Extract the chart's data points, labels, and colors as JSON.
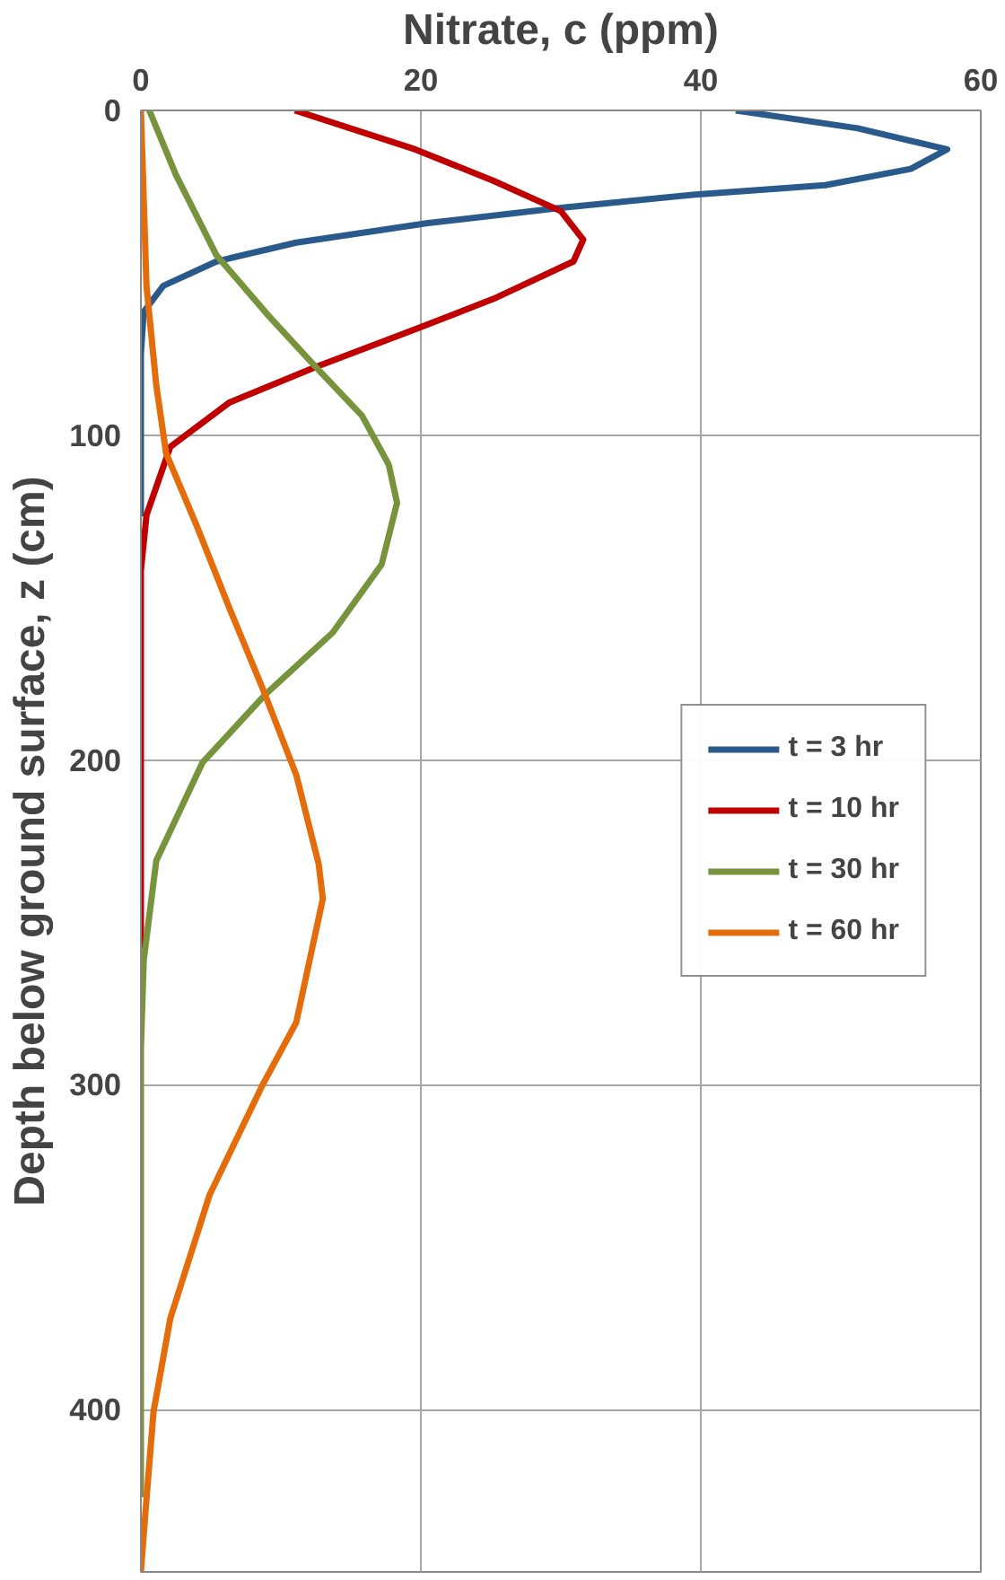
{
  "chart_data": {
    "type": "line",
    "xlabel": "Nitrate, c (ppm)",
    "ylabel": "Depth below ground surface, z (cm)",
    "xlim": [
      0,
      60
    ],
    "xticks": [
      0,
      20,
      40,
      60
    ],
    "ylim": [
      450,
      0
    ],
    "yticks": [
      0,
      100,
      200,
      300,
      400
    ],
    "grid": true,
    "legend": "right",
    "marker": "none",
    "line_style": "solid",
    "series": [
      {
        "name": "t = 3 hr",
        "color": "#2a5a8c",
        "x": [
          42.5,
          51.2,
          57.6,
          55,
          48.9,
          39.4,
          30,
          20.5,
          11.1,
          5.4,
          1.6,
          0.2,
          0,
          0
        ],
        "values": [
          0,
          5.5,
          12,
          18,
          23,
          26,
          30,
          34.7,
          40.7,
          46.5,
          54,
          62,
          75,
          125
        ]
      },
      {
        "name": "t = 10 hr",
        "color": "#c00000",
        "x": [
          11,
          19.6,
          25.2,
          30,
          31.6,
          30.9,
          25.2,
          19.6,
          12.5,
          6.3,
          2.1,
          0.4,
          0,
          0
        ],
        "values": [
          0,
          12,
          21.7,
          31,
          39.8,
          46.5,
          58,
          67.4,
          79,
          90,
          103.6,
          124.6,
          141.7,
          258
        ]
      },
      {
        "name": "t = 30 hr",
        "color": "#77933c",
        "x": [
          0.6,
          2.5,
          5.4,
          9.2,
          12.5,
          15.8,
          17.7,
          18.3,
          17.2,
          13.7,
          8.9,
          4.4,
          1.1,
          0.2,
          0,
          0
        ],
        "values": [
          0,
          19.8,
          44.6,
          63.6,
          79,
          94,
          109,
          120.8,
          139.8,
          160.8,
          179.8,
          200.8,
          231,
          261.7,
          289,
          427
        ]
      },
      {
        "name": "t = 60 hr",
        "color": "#e46c0a",
        "x": [
          0,
          0.4,
          1.1,
          1.8,
          4,
          6.3,
          8.7,
          11.1,
          12.7,
          13,
          11.1,
          8.7,
          4.9,
          2.1,
          0.9,
          0.3,
          0
        ],
        "values": [
          0,
          54,
          84.6,
          105.5,
          128,
          153,
          178,
          204.6,
          232,
          242.7,
          280.8,
          300,
          334,
          372,
          400.8,
          433,
          450
        ]
      }
    ]
  }
}
